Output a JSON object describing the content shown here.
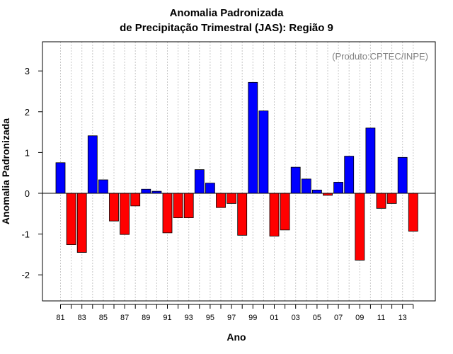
{
  "chart_data": {
    "type": "bar",
    "title": "Anomalia Padronizada",
    "subtitle": "de Precipitação Trimestral (JAS): Região 9",
    "xlabel": "Ano",
    "ylabel": "Anomalia Padronizada",
    "annotation": "(Produto:CPTEC/INPE)",
    "ylim": [
      -2.65,
      3.7
    ],
    "yticks": [
      -2,
      -1,
      0,
      1,
      2,
      3
    ],
    "xtick_labels": [
      "81",
      "83",
      "85",
      "87",
      "89",
      "91",
      "93",
      "95",
      "97",
      "99",
      "01",
      "03",
      "05",
      "07",
      "09",
      "11",
      "13"
    ],
    "grid": "vertical dotted",
    "positive_color": "#0000ff",
    "negative_color": "#ff0000",
    "categories": [
      "1981",
      "1982",
      "1983",
      "1984",
      "1985",
      "1986",
      "1987",
      "1988",
      "1989",
      "1990",
      "1991",
      "1992",
      "1993",
      "1994",
      "1995",
      "1996",
      "1997",
      "1998",
      "1999",
      "2000",
      "2001",
      "2002",
      "2003",
      "2004",
      "2005",
      "2006",
      "2007",
      "2008",
      "2009",
      "2010",
      "2011",
      "2012",
      "2013",
      "2014"
    ],
    "values": [
      0.75,
      -1.26,
      -1.45,
      1.41,
      0.33,
      -0.68,
      -1.01,
      -0.31,
      0.1,
      0.05,
      -0.97,
      -0.6,
      -0.6,
      0.58,
      0.25,
      -0.35,
      -0.25,
      -1.03,
      2.72,
      2.02,
      -1.05,
      -0.9,
      0.64,
      0.35,
      0.08,
      -0.05,
      0.27,
      0.91,
      -1.64,
      1.6,
      -0.37,
      -0.25,
      0.88,
      -0.93
    ]
  }
}
